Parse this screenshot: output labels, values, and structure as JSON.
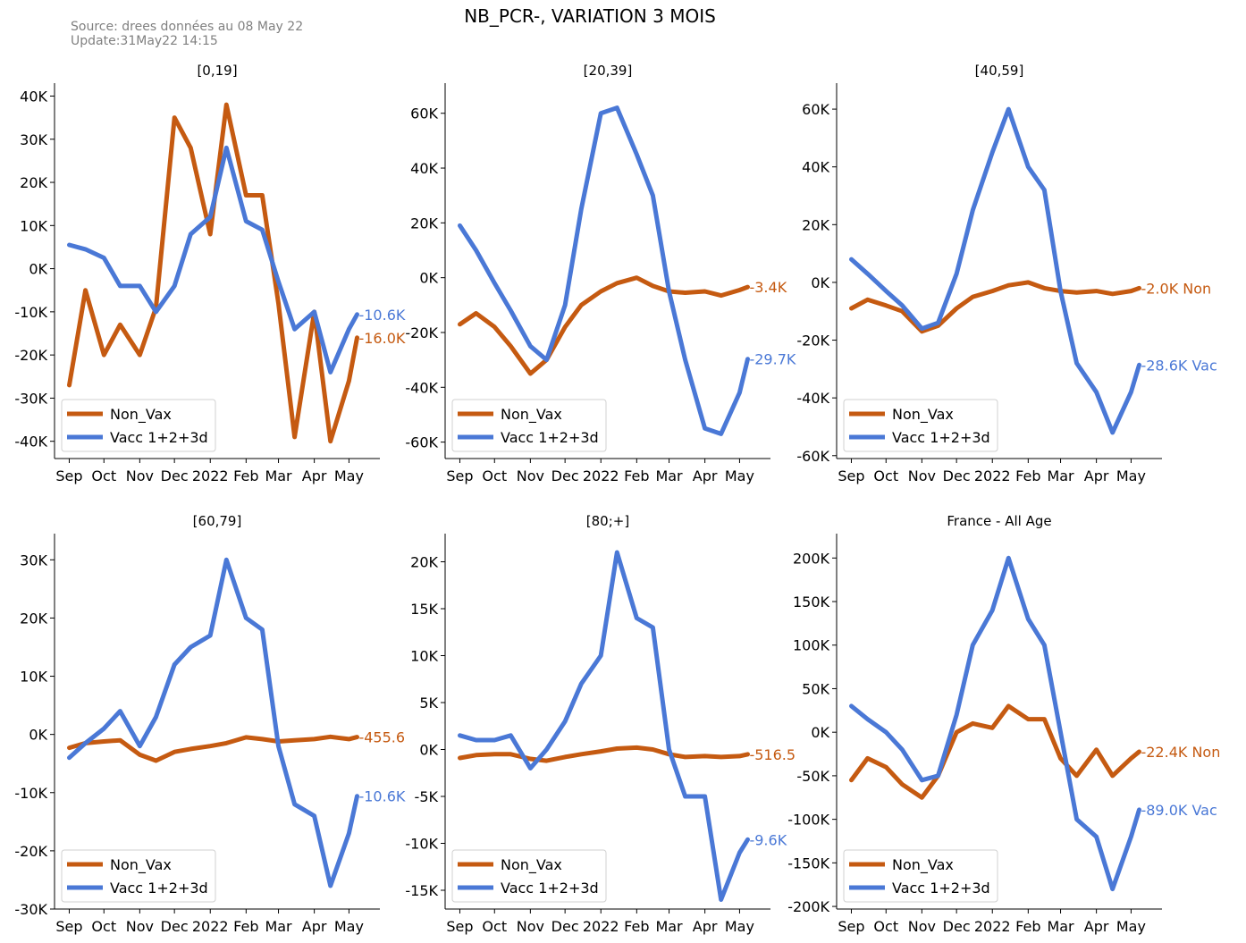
{
  "header": {
    "title": "NB_PCR-, VARIATION 3 MOIS",
    "source": "Source: drees données au 08 May 22",
    "update": "Update:31May22 14:15"
  },
  "colors": {
    "non_vax": "#c55a11",
    "vacc": "#4a78d6"
  },
  "chart_data": [
    {
      "type": "line",
      "title": "[0,19]",
      "x_ticks": [
        "Sep",
        "Oct",
        "Nov",
        "Dec",
        "2022",
        "Feb",
        "Mar",
        "Apr",
        "May"
      ],
      "x": [
        "2021-09-01",
        "2021-09-15",
        "2021-10-01",
        "2021-10-15",
        "2021-11-01",
        "2021-11-15",
        "2021-12-01",
        "2021-12-15",
        "2022-01-01",
        "2022-01-15",
        "2022-02-01",
        "2022-02-15",
        "2022-03-01",
        "2022-03-15",
        "2022-04-01",
        "2022-04-15",
        "2022-05-01",
        "2022-05-08"
      ],
      "ylim": [
        -44000,
        43000
      ],
      "yticks": [
        -40000,
        -30000,
        -20000,
        -10000,
        0,
        10000,
        20000,
        30000,
        40000
      ],
      "ytick_labels": [
        "-40K",
        "-30K",
        "-20K",
        "-10K",
        "0K",
        "10K",
        "20K",
        "30K",
        "40K"
      ],
      "series": [
        {
          "name": "Non_Vax",
          "values": [
            -27000,
            -5000,
            -20000,
            -13000,
            -20000,
            -9000,
            35000,
            28000,
            8000,
            38000,
            17000,
            17000,
            -8000,
            -39000,
            -10000,
            -40000,
            -26000,
            -16000
          ],
          "end_label": "-16.0K"
        },
        {
          "name": "Vacc 1+2+3d",
          "values": [
            5500,
            4500,
            2500,
            -4000,
            -4000,
            -10000,
            -4000,
            8000,
            12000,
            28000,
            11000,
            9000,
            -3000,
            -14000,
            -10000,
            -24000,
            -14000,
            -10600
          ],
          "end_label": "-10.6K"
        }
      ],
      "legend": "lower-left"
    },
    {
      "type": "line",
      "title": "[20,39]",
      "x_ticks": [
        "Sep",
        "Oct",
        "Nov",
        "Dec",
        "2022",
        "Feb",
        "Mar",
        "Apr",
        "May"
      ],
      "x": [
        "2021-09-01",
        "2021-09-15",
        "2021-10-01",
        "2021-10-15",
        "2021-11-01",
        "2021-11-15",
        "2021-12-01",
        "2021-12-15",
        "2022-01-01",
        "2022-01-15",
        "2022-02-01",
        "2022-02-15",
        "2022-03-01",
        "2022-03-15",
        "2022-04-01",
        "2022-04-15",
        "2022-05-01",
        "2022-05-08"
      ],
      "ylim": [
        -66000,
        71000
      ],
      "yticks": [
        -60000,
        -40000,
        -20000,
        0,
        20000,
        40000,
        60000
      ],
      "ytick_labels": [
        "-60K",
        "-40K",
        "-20K",
        "0K",
        "20K",
        "40K",
        "60K"
      ],
      "series": [
        {
          "name": "Non_Vax",
          "values": [
            -17000,
            -13000,
            -18000,
            -25000,
            -35000,
            -30000,
            -18000,
            -10000,
            -5000,
            -2000,
            0,
            -3000,
            -5000,
            -5500,
            -5000,
            -6500,
            -4500,
            -3400
          ],
          "end_label": "-3.4K"
        },
        {
          "name": "Vacc 1+2+3d",
          "values": [
            19000,
            10000,
            -2000,
            -12000,
            -25000,
            -30000,
            -10000,
            25000,
            60000,
            62000,
            45000,
            30000,
            -5000,
            -30000,
            -55000,
            -57000,
            -42000,
            -29700
          ],
          "end_label": "-29.7K"
        }
      ],
      "legend": "lower-left"
    },
    {
      "type": "line",
      "title": "[40,59]",
      "x_ticks": [
        "Sep",
        "Oct",
        "Nov",
        "Dec",
        "2022",
        "Feb",
        "Mar",
        "Apr",
        "May"
      ],
      "x": [
        "2021-09-01",
        "2021-09-15",
        "2021-10-01",
        "2021-10-15",
        "2021-11-01",
        "2021-11-15",
        "2021-12-01",
        "2021-12-15",
        "2022-01-01",
        "2022-01-15",
        "2022-02-01",
        "2022-02-15",
        "2022-03-01",
        "2022-03-15",
        "2022-04-01",
        "2022-04-15",
        "2022-05-01",
        "2022-05-08"
      ],
      "ylim": [
        -61000,
        69000
      ],
      "yticks": [
        -60000,
        -40000,
        -20000,
        0,
        20000,
        40000,
        60000
      ],
      "ytick_labels": [
        "-60K",
        "-40K",
        "-20K",
        "0K",
        "20K",
        "40K",
        "60K"
      ],
      "series": [
        {
          "name": "Non_Vax",
          "values": [
            -9000,
            -6000,
            -8000,
            -10000,
            -17000,
            -15000,
            -9000,
            -5000,
            -3000,
            -1000,
            0,
            -2000,
            -3000,
            -3500,
            -3000,
            -4000,
            -3000,
            -2000
          ],
          "end_label": "-2.0K Non"
        },
        {
          "name": "Vacc 1+2+3d",
          "values": [
            8000,
            3000,
            -3000,
            -8000,
            -16000,
            -14000,
            3000,
            25000,
            45000,
            60000,
            40000,
            32000,
            -3000,
            -28000,
            -38000,
            -52000,
            -38000,
            -28600
          ],
          "end_label": "-28.6K Vac"
        }
      ],
      "legend": "lower-left"
    },
    {
      "type": "line",
      "title": "[60,79]",
      "x_ticks": [
        "Sep",
        "Oct",
        "Nov",
        "Dec",
        "2022",
        "Feb",
        "Mar",
        "Apr",
        "May"
      ],
      "x": [
        "2021-09-01",
        "2021-09-15",
        "2021-10-01",
        "2021-10-15",
        "2021-11-01",
        "2021-11-15",
        "2021-12-01",
        "2021-12-15",
        "2022-01-01",
        "2022-01-15",
        "2022-02-01",
        "2022-02-15",
        "2022-03-01",
        "2022-03-15",
        "2022-04-01",
        "2022-04-15",
        "2022-05-01",
        "2022-05-08"
      ],
      "ylim": [
        -30000,
        34500
      ],
      "yticks": [
        -30000,
        -20000,
        -10000,
        0,
        10000,
        20000,
        30000
      ],
      "ytick_labels": [
        "-30K",
        "-20K",
        "-10K",
        "0K",
        "10K",
        "20K",
        "30K"
      ],
      "series": [
        {
          "name": "Non_Vax",
          "values": [
            -2300,
            -1500,
            -1200,
            -1000,
            -3500,
            -4500,
            -3000,
            -2500,
            -2000,
            -1500,
            -500,
            -800,
            -1200,
            -1000,
            -800,
            -400,
            -800,
            -455.6
          ],
          "end_label": "-455.6"
        },
        {
          "name": "Vacc 1+2+3d",
          "values": [
            -4000,
            -1500,
            1000,
            4000,
            -2000,
            3000,
            12000,
            15000,
            17000,
            30000,
            20000,
            18000,
            -2000,
            -12000,
            -14000,
            -26000,
            -17000,
            -10600
          ],
          "end_label": "-10.6K"
        }
      ],
      "legend": "lower-left"
    },
    {
      "type": "line",
      "title": "[80;+]",
      "x_ticks": [
        "Sep",
        "Oct",
        "Nov",
        "Dec",
        "2022",
        "Feb",
        "Mar",
        "Apr",
        "May"
      ],
      "x": [
        "2021-09-01",
        "2021-09-15",
        "2021-10-01",
        "2021-10-15",
        "2021-11-01",
        "2021-11-15",
        "2021-12-01",
        "2021-12-15",
        "2022-01-01",
        "2022-01-15",
        "2022-02-01",
        "2022-02-15",
        "2022-03-01",
        "2022-03-15",
        "2022-04-01",
        "2022-04-15",
        "2022-05-01",
        "2022-05-08"
      ],
      "ylim": [
        -17000,
        23000
      ],
      "yticks": [
        -15000,
        -10000,
        -5000,
        0,
        5000,
        10000,
        15000,
        20000
      ],
      "ytick_labels": [
        "-15K",
        "-10K",
        "-5K",
        "0K",
        "5K",
        "10K",
        "15K",
        "20K"
      ],
      "series": [
        {
          "name": "Non_Vax",
          "values": [
            -900,
            -600,
            -500,
            -500,
            -1000,
            -1200,
            -800,
            -500,
            -200,
            100,
            200,
            0,
            -500,
            -800,
            -700,
            -800,
            -700,
            -516.5
          ],
          "end_label": "-516.5"
        },
        {
          "name": "Vacc 1+2+3d",
          "values": [
            1500,
            1000,
            1000,
            1500,
            -2000,
            0,
            3000,
            7000,
            10000,
            21000,
            14000,
            13000,
            0,
            -5000,
            -5000,
            -16000,
            -11000,
            -9600
          ],
          "end_label": "-9.6K"
        }
      ],
      "legend": "lower-left"
    },
    {
      "type": "line",
      "title": "France - All Age",
      "x_ticks": [
        "Sep",
        "Oct",
        "Nov",
        "Dec",
        "2022",
        "Feb",
        "Mar",
        "Apr",
        "May"
      ],
      "x": [
        "2021-09-01",
        "2021-09-15",
        "2021-10-01",
        "2021-10-15",
        "2021-11-01",
        "2021-11-15",
        "2021-12-01",
        "2021-12-15",
        "2022-01-01",
        "2022-01-15",
        "2022-02-01",
        "2022-02-15",
        "2022-03-01",
        "2022-03-15",
        "2022-04-01",
        "2022-04-15",
        "2022-05-01",
        "2022-05-08"
      ],
      "ylim": [
        -203000,
        228000
      ],
      "yticks": [
        -200000,
        -150000,
        -100000,
        -50000,
        0,
        50000,
        100000,
        150000,
        200000
      ],
      "ytick_labels": [
        "-200K",
        "-150K",
        "-100K",
        "-50K",
        "0K",
        "50K",
        "100K",
        "150K",
        "200K"
      ],
      "series": [
        {
          "name": "Non_Vax",
          "values": [
            -55000,
            -30000,
            -40000,
            -60000,
            -75000,
            -50000,
            0,
            10000,
            5000,
            30000,
            15000,
            15000,
            -30000,
            -50000,
            -20000,
            -50000,
            -30000,
            -22400
          ],
          "end_label": "-22.4K Non"
        },
        {
          "name": "Vacc 1+2+3d",
          "values": [
            30000,
            15000,
            0,
            -20000,
            -55000,
            -50000,
            20000,
            100000,
            140000,
            200000,
            130000,
            100000,
            0,
            -100000,
            -120000,
            -180000,
            -120000,
            -89000
          ],
          "end_label": "-89.0K Vac"
        }
      ],
      "legend": "lower-left"
    }
  ]
}
